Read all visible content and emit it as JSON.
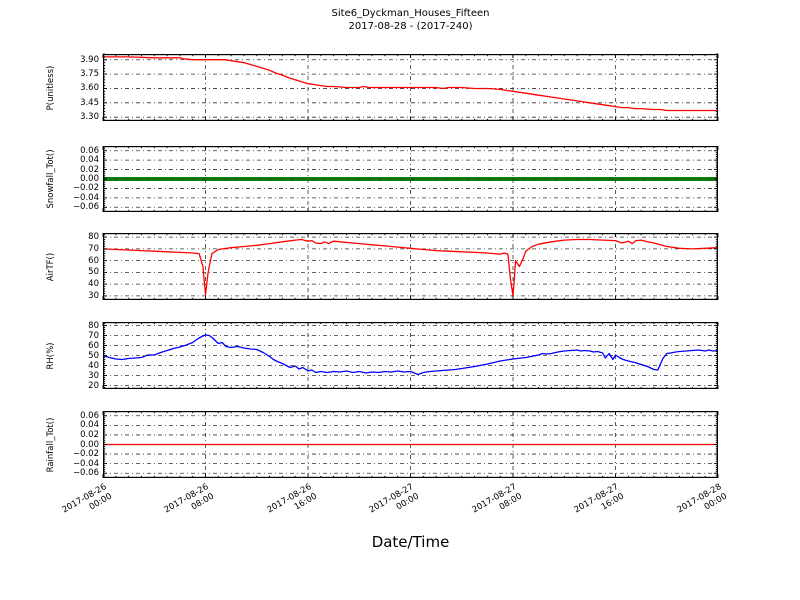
{
  "title": {
    "line1": "Site6_Dyckman_Houses_Fifteen",
    "line2": "2017-08-28 - (2017-240)"
  },
  "xlabel": "Date/Time",
  "style": {
    "grid_color": "#333333",
    "spine_color": "#000000",
    "background": "#ffffff"
  },
  "x_axis": {
    "range_hours": [
      0,
      48
    ],
    "major_ticks_hours": [
      0,
      8,
      16,
      24,
      32,
      40,
      48
    ],
    "minor_step_hours": 1,
    "tick_labels": [
      {
        "date": "2017-08-26",
        "time": "00:00"
      },
      {
        "date": "2017-08-26",
        "time": "08:00"
      },
      {
        "date": "2017-08-26",
        "time": "16:00"
      },
      {
        "date": "2017-08-27",
        "time": "00:00"
      },
      {
        "date": "2017-08-27",
        "time": "08:00"
      },
      {
        "date": "2017-08-27",
        "time": "16:00"
      },
      {
        "date": "2017-08-28",
        "time": "00:00"
      }
    ]
  },
  "chart_data": [
    {
      "name": "p-unitless",
      "type": "line",
      "ylabel": "P(unitless)",
      "color": "#ff0000",
      "line_width": 1.3,
      "grid_over": false,
      "ylim": [
        3.26,
        3.96
      ],
      "ytick_values": [
        3.9,
        3.75,
        3.6,
        3.45,
        3.3
      ],
      "ytick_labels": [
        "3.90",
        "3.75",
        "3.60",
        "3.45",
        "3.30"
      ],
      "x_hours": [
        0,
        2,
        4,
        6,
        6.3,
        7,
        9.5,
        10,
        10.5,
        11,
        11.5,
        12,
        12.5,
        13,
        13.5,
        14,
        14.5,
        15,
        15.5,
        16,
        16.5,
        17,
        17.5,
        18,
        19,
        20,
        20.3,
        20.8,
        21.5,
        22,
        23,
        24,
        25,
        26,
        26.5,
        27,
        28,
        29,
        30,
        31,
        31.5,
        32,
        32.5,
        33,
        33.5,
        34,
        34.5,
        35,
        35.5,
        36,
        36.5,
        37,
        37.5,
        38,
        38.5,
        39,
        39.5,
        40,
        40.5,
        41,
        41.5,
        42,
        43,
        43.5,
        44,
        45,
        46,
        47,
        48
      ],
      "y_values": [
        3.93,
        3.93,
        3.92,
        3.92,
        3.91,
        3.9,
        3.9,
        3.89,
        3.88,
        3.87,
        3.85,
        3.83,
        3.81,
        3.79,
        3.76,
        3.74,
        3.71,
        3.69,
        3.67,
        3.65,
        3.64,
        3.63,
        3.62,
        3.62,
        3.61,
        3.61,
        3.62,
        3.61,
        3.61,
        3.61,
        3.61,
        3.61,
        3.61,
        3.61,
        3.6,
        3.61,
        3.61,
        3.6,
        3.6,
        3.59,
        3.58,
        3.57,
        3.56,
        3.55,
        3.54,
        3.53,
        3.52,
        3.51,
        3.5,
        3.49,
        3.48,
        3.47,
        3.46,
        3.45,
        3.44,
        3.43,
        3.42,
        3.41,
        3.4,
        3.4,
        3.39,
        3.39,
        3.38,
        3.38,
        3.37,
        3.37,
        3.37,
        3.37,
        3.37
      ]
    },
    {
      "name": "snowfall-tot",
      "type": "line",
      "ylabel": "Snowfall_Tot()",
      "color": "#0a800a",
      "line_width": 4,
      "grid_over": true,
      "ylim": [
        -0.07,
        0.07
      ],
      "ytick_values": [
        0.06,
        0.04,
        0.02,
        0.0,
        -0.02,
        -0.04,
        -0.06
      ],
      "ytick_labels": [
        "0.06",
        "0.04",
        "0.02",
        "0.00",
        "−0.02",
        "−0.04",
        "−0.06"
      ],
      "x_hours": [
        0,
        48
      ],
      "y_values": [
        0,
        0
      ]
    },
    {
      "name": "airtf",
      "type": "line",
      "ylabel": "AirTF()",
      "color": "#ff0000",
      "line_width": 1.3,
      "grid_over": false,
      "ylim": [
        26.5,
        83.5
      ],
      "ytick_values": [
        80,
        70,
        60,
        50,
        40,
        30
      ],
      "ytick_labels": [
        "80",
        "70",
        "60",
        "50",
        "40",
        "30"
      ],
      "x_hours": [
        0,
        1,
        2,
        3,
        4,
        5,
        6,
        7,
        7.5,
        7.8,
        8,
        8.2,
        8.5,
        9,
        10,
        11,
        12,
        13,
        14,
        15,
        15.5,
        16,
        16.3,
        16.6,
        17,
        17.3,
        17.6,
        18,
        18.5,
        19,
        20,
        21,
        22,
        23,
        24,
        25,
        26,
        27,
        28,
        29,
        30,
        30.5,
        31,
        31.3,
        31.6,
        31.8,
        32,
        32.2,
        32.5,
        32.8,
        33,
        33.5,
        34,
        35,
        36,
        37,
        38,
        39,
        40,
        40.5,
        41,
        41.3,
        41.6,
        42,
        42.5,
        43,
        44,
        45,
        46,
        47,
        48
      ],
      "y_values": [
        70,
        69.5,
        69,
        68.5,
        68,
        67.5,
        67,
        66.5,
        66,
        55,
        31,
        50,
        66,
        69.5,
        71,
        72,
        73,
        74.5,
        76,
        77.5,
        78,
        76.5,
        77,
        75,
        74.5,
        76,
        74.5,
        76.5,
        76,
        75.5,
        74.5,
        73.5,
        72.5,
        71.5,
        70.5,
        69.5,
        68.5,
        68,
        67.5,
        67,
        66.5,
        66,
        65.5,
        66.5,
        65.5,
        45,
        30,
        60,
        55,
        62,
        68,
        72,
        74,
        76,
        77.5,
        78,
        78,
        77.5,
        77,
        75,
        76.5,
        74.5,
        77,
        77.5,
        76,
        75,
        72,
        70.5,
        70,
        70.5,
        71
      ]
    },
    {
      "name": "rh",
      "type": "line",
      "ylabel": "RH(%)",
      "color": "#0000ff",
      "line_width": 1.3,
      "grid_over": false,
      "ylim": [
        16.5,
        83.5
      ],
      "ytick_values": [
        80,
        70,
        60,
        50,
        40,
        30,
        20
      ],
      "ytick_labels": [
        "80",
        "70",
        "60",
        "50",
        "40",
        "30",
        "20"
      ],
      "x_hours": [
        0,
        0.5,
        1,
        1.5,
        2,
        2.5,
        3,
        3.5,
        4,
        4.5,
        5,
        5.5,
        6,
        6.5,
        7,
        7.2,
        7.5,
        7.8,
        8,
        8.3,
        8.6,
        9,
        9.3,
        9.6,
        10,
        10.5,
        11,
        11.5,
        12,
        12.5,
        13,
        13.3,
        13.6,
        14,
        14.3,
        14.6,
        15,
        15.3,
        15.6,
        16,
        16.3,
        16.6,
        17,
        17.5,
        18,
        18.5,
        19,
        19.5,
        20,
        20.5,
        21,
        21.5,
        22,
        22.5,
        23,
        23.5,
        24,
        24.3,
        24.6,
        25,
        25.5,
        26,
        26.5,
        27,
        27.5,
        28,
        29,
        30,
        31,
        32,
        33,
        34,
        34.3,
        34.6,
        35,
        35.5,
        36,
        36.5,
        37,
        37.3,
        37.6,
        38,
        38.3,
        38.6,
        39,
        39.2,
        39.5,
        39.8,
        40,
        40.3,
        40.6,
        41,
        41.5,
        42,
        42.5,
        43,
        43.3,
        43.7,
        44,
        44.3,
        44.7,
        45,
        45.5,
        46,
        46.5,
        47,
        47.3,
        47.6,
        48
      ],
      "y_values": [
        50,
        48,
        46.5,
        46,
        47,
        47.5,
        48,
        50.5,
        50.5,
        53,
        55,
        57,
        58.5,
        60.5,
        63,
        65,
        67.5,
        69.5,
        70.5,
        70,
        67,
        62,
        63,
        59,
        58,
        59,
        57.5,
        56.5,
        56,
        53,
        49,
        46,
        44,
        42,
        40,
        38,
        39.5,
        36.5,
        38,
        34.5,
        35.5,
        33,
        34,
        33,
        34,
        33.5,
        34.5,
        33,
        34,
        32.5,
        33.5,
        33,
        34,
        33.5,
        34.5,
        33.5,
        34,
        32.5,
        31,
        33,
        34,
        34.5,
        35,
        35.5,
        36,
        37,
        39,
        41.5,
        44.5,
        46.5,
        48,
        50.5,
        52,
        51.5,
        52,
        53.5,
        54.5,
        55,
        55.5,
        54.5,
        55,
        54.5,
        53.5,
        54,
        52.5,
        47.5,
        52,
        46,
        50.5,
        48,
        46,
        44.5,
        43,
        41,
        39,
        36,
        35.5,
        47,
        52,
        52.5,
        53.5,
        54,
        54.5,
        55,
        55.5,
        54.5,
        55.5,
        54.5,
        55
      ]
    },
    {
      "name": "rainfall-tot",
      "type": "line",
      "ylabel": "Rainfall_Tot()",
      "color": "#ff0000",
      "line_width": 1.3,
      "grid_over": false,
      "ylim": [
        -0.07,
        0.07
      ],
      "ytick_values": [
        0.06,
        0.04,
        0.02,
        0.0,
        -0.02,
        -0.04,
        -0.06
      ],
      "ytick_labels": [
        "0.06",
        "0.04",
        "0.02",
        "0.00",
        "−0.02",
        "−0.04",
        "−0.06"
      ],
      "x_hours": [
        0,
        48
      ],
      "y_values": [
        0,
        0
      ]
    }
  ]
}
